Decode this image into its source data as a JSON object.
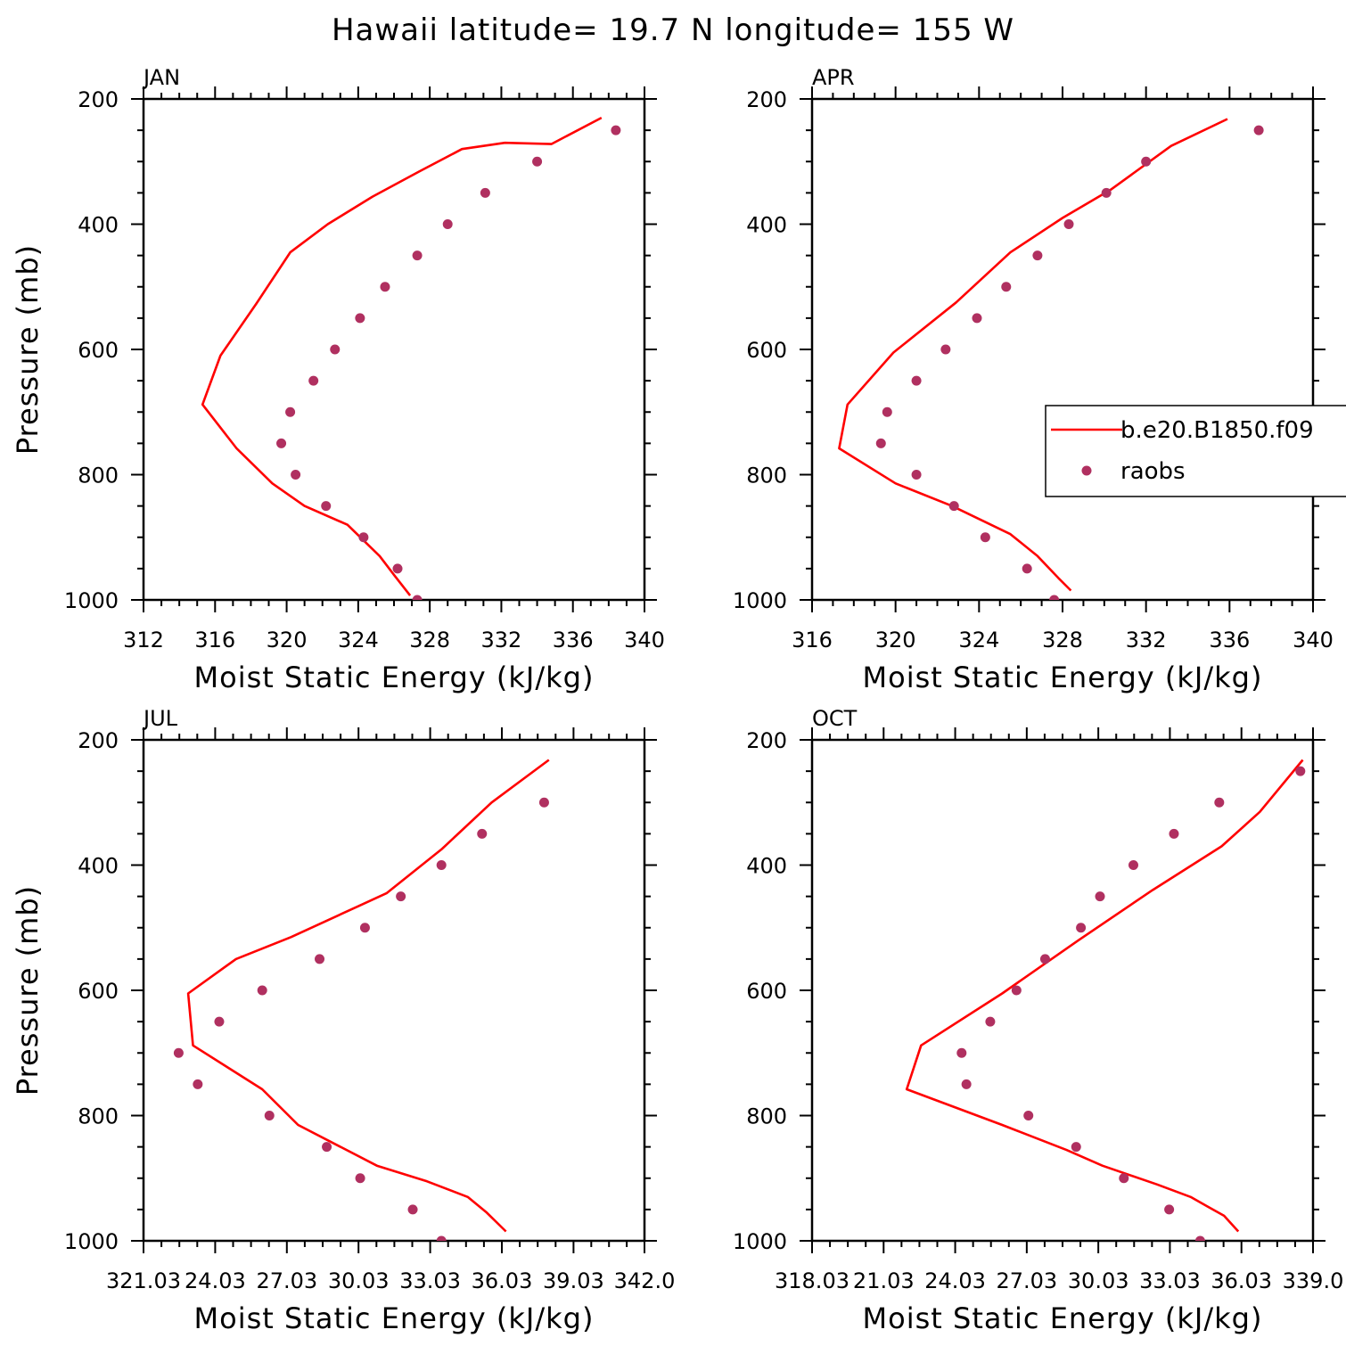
{
  "title": "Hawaii  latitude= 19.7 N longitude= 155 W",
  "chart_data": [
    {
      "type": "line",
      "panel": "JAN",
      "xlabel": "Moist Static Energy (kJ/kg)",
      "ylabel": "Pressure (mb)",
      "xlim": [
        312,
        340
      ],
      "ylim": [
        1000,
        200
      ],
      "xticks": [
        312,
        316,
        320,
        324,
        328,
        332,
        336,
        340
      ],
      "xtick_labels": [
        "312",
        "316",
        "320",
        "324",
        "328",
        "332",
        "336",
        "340"
      ],
      "yticks": [
        200,
        400,
        600,
        800,
        1000
      ],
      "series": [
        {
          "name": "b.e20.B1850.f09",
          "color": "#ff0000",
          "x": [
            326.9,
            326.0,
            325.2,
            323.4,
            321.0,
            319.2,
            317.2,
            315.3,
            316.3,
            318.3,
            320.2,
            322.3,
            324.8,
            327.4,
            329.8,
            332.2,
            334.8,
            337.6
          ],
          "y": [
            993,
            960,
            930,
            880,
            850,
            814,
            758,
            688,
            610,
            527,
            445,
            400,
            356,
            316,
            280,
            270,
            272,
            230
          ]
        },
        {
          "name": "raobs",
          "color": "#b03060",
          "x": [
            327.3,
            326.2,
            324.3,
            322.2,
            320.5,
            319.7,
            320.2,
            321.5,
            322.7,
            324.1,
            325.5,
            327.3,
            329.0,
            331.1,
            334.0,
            338.4
          ],
          "y": [
            1000,
            950,
            900,
            850,
            800,
            750,
            700,
            650,
            600,
            550,
            500,
            450,
            400,
            350,
            300,
            250
          ]
        }
      ]
    },
    {
      "type": "line",
      "panel": "APR",
      "xlabel": "Moist Static Energy (kJ/kg)",
      "ylabel": "",
      "xlim": [
        316,
        340
      ],
      "ylim": [
        1000,
        200
      ],
      "xticks": [
        316,
        320,
        324,
        328,
        332,
        336,
        340
      ],
      "xtick_labels": [
        "316",
        "320",
        "324",
        "328",
        "332",
        "336",
        "340"
      ],
      "yticks": [
        200,
        400,
        600,
        800,
        1000
      ],
      "series": [
        {
          "name": "b.e20.B1850.f09",
          "color": "#ff0000",
          "x": [
            328.4,
            327.8,
            326.8,
            325.5,
            322.7,
            320.0,
            317.3,
            317.7,
            319.9,
            322.9,
            325.5,
            328.0,
            330.3,
            333.2,
            335.9
          ],
          "y": [
            985,
            965,
            930,
            895,
            850,
            814,
            758,
            688,
            605,
            525,
            445,
            390,
            345,
            275,
            232
          ]
        },
        {
          "name": "raobs",
          "color": "#b03060",
          "x": [
            327.6,
            326.3,
            324.3,
            322.8,
            321.0,
            319.3,
            319.6,
            321.0,
            322.4,
            323.9,
            325.3,
            326.8,
            328.3,
            330.1,
            332.0,
            337.4
          ],
          "y": [
            1000,
            950,
            900,
            850,
            800,
            750,
            700,
            650,
            600,
            550,
            500,
            450,
            400,
            350,
            300,
            250
          ]
        }
      ],
      "legend": {
        "position": "right",
        "entries": [
          "b.e20.B1850.f09",
          "raobs"
        ]
      }
    },
    {
      "type": "line",
      "panel": "JUL",
      "xlabel": "Moist Static Energy (kJ/kg)",
      "ylabel": "Pressure (mb)",
      "xlim": [
        321.03,
        342.0
      ],
      "ylim": [
        1000,
        200
      ],
      "xticks": [
        321.03,
        324.03,
        327.03,
        330.03,
        333.03,
        336.03,
        339.03,
        342.0
      ],
      "xtick_labels": [
        "321.03",
        "24.03",
        "27.03",
        "30.03",
        "33.03",
        "36.03",
        "39.03",
        "342.0"
      ],
      "yticks": [
        200,
        400,
        600,
        800,
        1000
      ],
      "series": [
        {
          "name": "b.e20.B1850.f09",
          "color": "#ff0000",
          "x": [
            336.2,
            335.4,
            334.6,
            332.9,
            330.8,
            327.5,
            326.0,
            323.1,
            322.9,
            324.9,
            327.2,
            331.2,
            333.5,
            335.6,
            338.0
          ],
          "y": [
            985,
            955,
            930,
            905,
            880,
            815,
            758,
            688,
            605,
            550,
            515,
            445,
            375,
            300,
            232
          ]
        },
        {
          "name": "raobs",
          "color": "#b03060",
          "x": [
            333.5,
            332.3,
            330.1,
            328.7,
            326.3,
            323.3,
            322.5,
            324.2,
            326.0,
            328.4,
            330.3,
            331.8,
            333.5,
            335.2,
            337.8
          ],
          "y": [
            1000,
            950,
            900,
            850,
            800,
            750,
            700,
            650,
            600,
            550,
            500,
            450,
            400,
            350,
            300
          ]
        }
      ]
    },
    {
      "type": "line",
      "panel": "OCT",
      "xlabel": "Moist Static Energy (kJ/kg)",
      "ylabel": "",
      "xlim": [
        318.03,
        339.03
      ],
      "ylim": [
        1000,
        200
      ],
      "xticks": [
        318.03,
        321.03,
        324.03,
        327.03,
        330.03,
        333.03,
        336.03,
        339.03
      ],
      "xtick_labels": [
        "318.03",
        "21.03",
        "24.03",
        "27.03",
        "30.03",
        "33.03",
        "36.03",
        "339.0"
      ],
      "yticks": [
        200,
        400,
        600,
        800,
        1000
      ],
      "series": [
        {
          "name": "b.e20.B1850.f09",
          "color": "#ff0000",
          "x": [
            335.9,
            335.3,
            334.6,
            333.9,
            332.5,
            330.2,
            328.7,
            326.0,
            322.0,
            322.6,
            326.0,
            329.2,
            332.3,
            335.2,
            336.8,
            338.6
          ],
          "y": [
            985,
            960,
            945,
            930,
            910,
            880,
            855,
            815,
            758,
            688,
            605,
            520,
            440,
            370,
            315,
            232
          ]
        },
        {
          "name": "raobs",
          "color": "#b03060",
          "x": [
            334.3,
            333.0,
            331.1,
            329.1,
            327.1,
            324.5,
            324.3,
            325.5,
            326.6,
            327.8,
            329.3,
            330.1,
            331.5,
            333.2,
            335.1,
            338.5
          ],
          "y": [
            1000,
            950,
            900,
            850,
            800,
            750,
            700,
            650,
            600,
            550,
            500,
            450,
            400,
            350,
            300,
            250
          ]
        }
      ]
    }
  ]
}
